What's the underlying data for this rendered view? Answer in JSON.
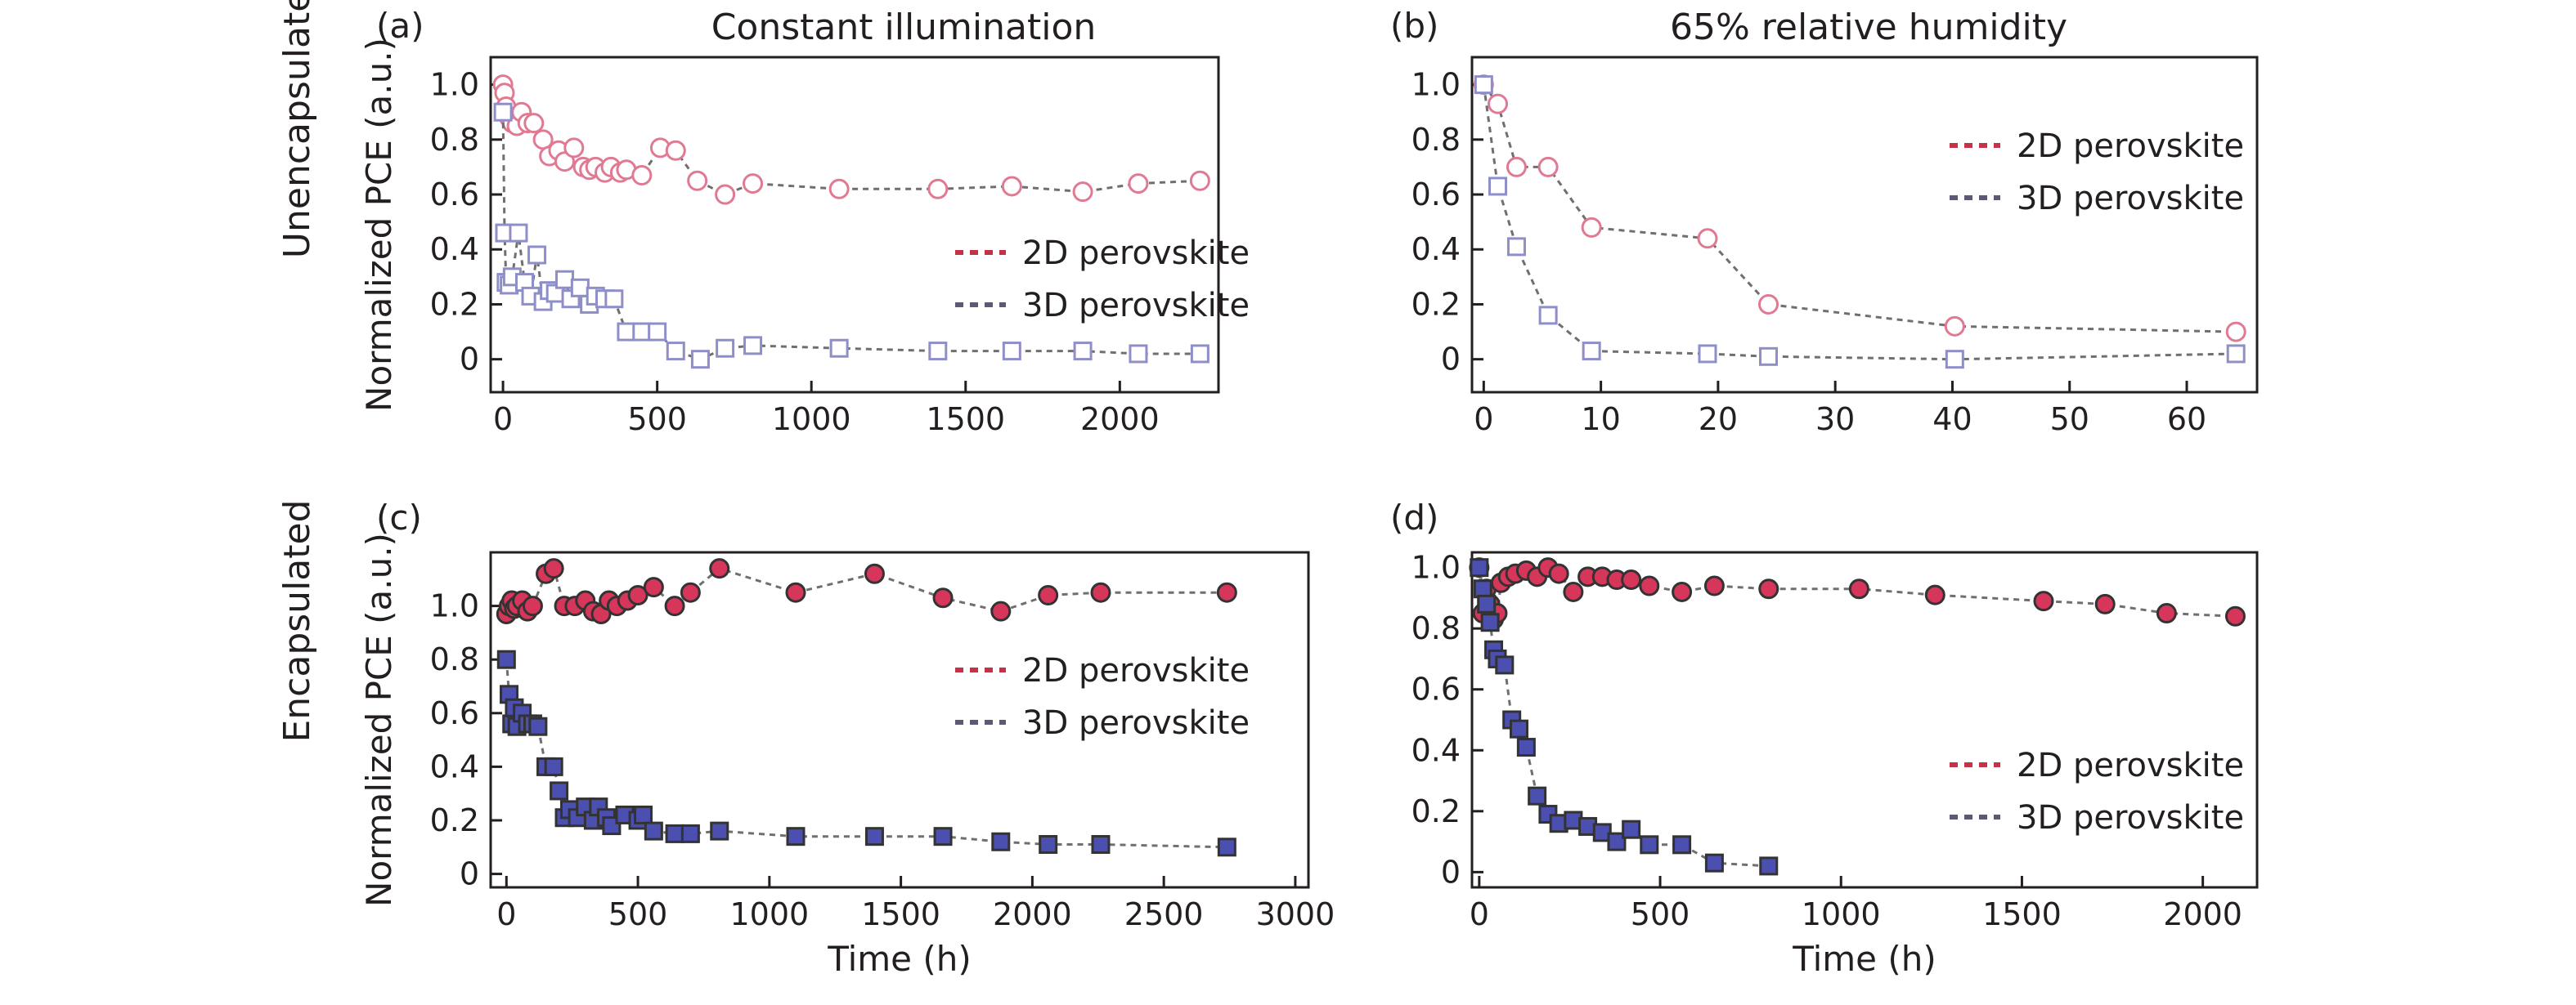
{
  "figure": {
    "col_titles": [
      "Constant illumination",
      "65% relative humidity"
    ],
    "row_titles": [
      "Unencapsulated",
      "Encapsulated"
    ]
  },
  "colors": {
    "2D": "#d6365a",
    "3D": "#4a4fb0",
    "2D_open": "#e07a93",
    "3D_open": "#8e8fc8",
    "legend_2D": "#c4324a",
    "legend_3D": "#5a5a72",
    "connector": "#6f6f6f"
  },
  "chart_data": [
    {
      "panel": "(a)",
      "type": "scatter",
      "marker_fill": "open",
      "xlabel": "",
      "ylabel": "Normalized PCE (a.u.)",
      "xlim": [
        -40,
        2320
      ],
      "ylim": [
        -0.12,
        1.1
      ],
      "xticks": [
        0,
        500,
        1000,
        1500,
        2000
      ],
      "yticks": [
        0,
        0.2,
        0.4,
        0.6,
        0.8,
        1.0
      ],
      "ytick_labels": [
        "0",
        "0.2",
        "0.4",
        "0.6",
        "0.8",
        "1.0"
      ],
      "legend": "right",
      "series": [
        {
          "name": "2D perovskite",
          "marker": "circle",
          "x": [
            0,
            5,
            10,
            20,
            30,
            45,
            60,
            80,
            100,
            130,
            150,
            180,
            200,
            230,
            260,
            280,
            300,
            330,
            350,
            380,
            400,
            450,
            510,
            560,
            630,
            720,
            810,
            1090,
            1410,
            1650,
            1880,
            2060,
            2260
          ],
          "y": [
            1.0,
            0.97,
            0.92,
            0.88,
            0.86,
            0.85,
            0.9,
            0.86,
            0.86,
            0.8,
            0.74,
            0.76,
            0.72,
            0.77,
            0.7,
            0.69,
            0.7,
            0.68,
            0.7,
            0.68,
            0.69,
            0.67,
            0.77,
            0.76,
            0.65,
            0.6,
            0.64,
            0.62,
            0.62,
            0.63,
            0.61,
            0.64,
            0.65
          ]
        },
        {
          "name": "3D perovskite",
          "marker": "square",
          "x": [
            0,
            5,
            10,
            20,
            30,
            50,
            70,
            90,
            110,
            130,
            150,
            170,
            200,
            220,
            250,
            280,
            300,
            330,
            360,
            400,
            450,
            500,
            560,
            640,
            720,
            810,
            1090,
            1410,
            1650,
            1880,
            2060,
            2260
          ],
          "y": [
            0.9,
            0.46,
            0.28,
            0.27,
            0.3,
            0.46,
            0.28,
            0.23,
            0.38,
            0.21,
            0.25,
            0.24,
            0.29,
            0.22,
            0.26,
            0.2,
            0.23,
            0.22,
            0.22,
            0.1,
            0.1,
            0.1,
            0.03,
            0.0,
            0.04,
            0.05,
            0.04,
            0.03,
            0.03,
            0.03,
            0.02,
            0.02
          ]
        }
      ]
    },
    {
      "panel": "(b)",
      "type": "scatter",
      "marker_fill": "open",
      "xlabel": "",
      "ylabel": "",
      "xlim": [
        -1,
        66
      ],
      "ylim": [
        -0.12,
        1.1
      ],
      "xticks": [
        0,
        10,
        20,
        30,
        40,
        50,
        60
      ],
      "yticks": [
        0,
        0.2,
        0.4,
        0.6,
        0.8,
        1.0
      ],
      "ytick_labels": [
        "0",
        "0.2",
        "0.4",
        "0.6",
        "0.8",
        "1.0"
      ],
      "legend": "top-right",
      "series": [
        {
          "name": "2D perovskite",
          "marker": "circle",
          "x": [
            0,
            1.2,
            2.8,
            5.5,
            9.2,
            19.1,
            24.3,
            40.2,
            64.2
          ],
          "y": [
            1.0,
            0.93,
            0.7,
            0.7,
            0.48,
            0.44,
            0.2,
            0.12,
            0.1
          ]
        },
        {
          "name": "3D perovskite",
          "marker": "square",
          "x": [
            0,
            1.2,
            2.8,
            5.5,
            9.2,
            19.1,
            24.3,
            40.2,
            64.2
          ],
          "y": [
            1.0,
            0.63,
            0.41,
            0.16,
            0.03,
            0.02,
            0.01,
            0.0,
            0.02
          ]
        }
      ]
    },
    {
      "panel": "(c)",
      "type": "scatter",
      "marker_fill": "filled",
      "xlabel": "Time (h)",
      "ylabel": "Normalized PCE (a.u.)",
      "xlim": [
        -60,
        3050
      ],
      "ylim": [
        -0.05,
        1.2
      ],
      "xticks": [
        0,
        500,
        1000,
        1500,
        2000,
        2500,
        3000
      ],
      "yticks": [
        0,
        0.2,
        0.4,
        0.6,
        0.8,
        1.0
      ],
      "ytick_labels": [
        "0",
        "0.2",
        "0.4",
        "0.6",
        "0.8",
        "1.0"
      ],
      "legend": "right",
      "series": [
        {
          "name": "2D perovskite",
          "marker": "circle",
          "x": [
            0,
            10,
            20,
            30,
            40,
            60,
            80,
            100,
            150,
            180,
            220,
            260,
            300,
            330,
            360,
            390,
            420,
            460,
            500,
            560,
            640,
            700,
            810,
            1100,
            1400,
            1660,
            1880,
            2060,
            2260,
            2740
          ],
          "y": [
            0.97,
            1.0,
            1.02,
            0.99,
            1.0,
            1.02,
            0.98,
            1.0,
            1.12,
            1.14,
            1.0,
            1.0,
            1.02,
            0.98,
            0.97,
            1.02,
            1.0,
            1.02,
            1.04,
            1.07,
            1.0,
            1.05,
            1.14,
            1.05,
            1.12,
            1.03,
            0.98,
            1.04,
            1.05,
            1.05
          ]
        },
        {
          "name": "3D perovskite",
          "marker": "square",
          "x": [
            0,
            10,
            20,
            30,
            40,
            60,
            80,
            100,
            120,
            150,
            180,
            200,
            220,
            240,
            270,
            300,
            330,
            350,
            380,
            400,
            450,
            500,
            520,
            560,
            640,
            700,
            810,
            1100,
            1400,
            1660,
            1880,
            2060,
            2260,
            2740
          ],
          "y": [
            0.8,
            0.67,
            0.56,
            0.62,
            0.55,
            0.6,
            0.56,
            0.56,
            0.55,
            0.4,
            0.4,
            0.31,
            0.21,
            0.24,
            0.21,
            0.25,
            0.2,
            0.25,
            0.21,
            0.18,
            0.22,
            0.2,
            0.22,
            0.16,
            0.15,
            0.15,
            0.16,
            0.14,
            0.14,
            0.14,
            0.12,
            0.11,
            0.11,
            0.1
          ]
        }
      ]
    },
    {
      "panel": "(d)",
      "type": "scatter",
      "marker_fill": "filled",
      "xlabel": "Time (h)",
      "ylabel": "",
      "xlim": [
        -20,
        2150
      ],
      "ylim": [
        -0.05,
        1.05
      ],
      "xticks": [
        0,
        500,
        1000,
        1500,
        2000
      ],
      "yticks": [
        0,
        0.2,
        0.4,
        0.6,
        0.8,
        1.0
      ],
      "ytick_labels": [
        "0",
        "0.2",
        "0.4",
        "0.6",
        "0.8",
        "1.0"
      ],
      "legend": "bottom-right",
      "series": [
        {
          "name": "2D perovskite",
          "marker": "circle",
          "x": [
            0,
            10,
            20,
            30,
            40,
            50,
            60,
            80,
            100,
            130,
            160,
            190,
            220,
            260,
            300,
            340,
            380,
            420,
            470,
            560,
            650,
            800,
            1050,
            1260,
            1560,
            1730,
            1900,
            2090
          ],
          "y": [
            1.0,
            0.85,
            0.93,
            0.88,
            0.83,
            0.85,
            0.95,
            0.97,
            0.98,
            0.99,
            0.97,
            1.0,
            0.98,
            0.92,
            0.97,
            0.97,
            0.96,
            0.96,
            0.94,
            0.92,
            0.94,
            0.93,
            0.93,
            0.91,
            0.89,
            0.88,
            0.85,
            0.84
          ]
        },
        {
          "name": "3D perovskite",
          "marker": "square",
          "x": [
            0,
            10,
            20,
            30,
            40,
            50,
            70,
            90,
            110,
            130,
            160,
            190,
            220,
            260,
            300,
            340,
            380,
            420,
            470,
            560,
            650,
            800
          ],
          "y": [
            1.0,
            0.93,
            0.88,
            0.82,
            0.73,
            0.7,
            0.68,
            0.5,
            0.47,
            0.41,
            0.25,
            0.19,
            0.16,
            0.17,
            0.15,
            0.13,
            0.1,
            0.14,
            0.09,
            0.09,
            0.03,
            0.02
          ]
        }
      ]
    }
  ]
}
